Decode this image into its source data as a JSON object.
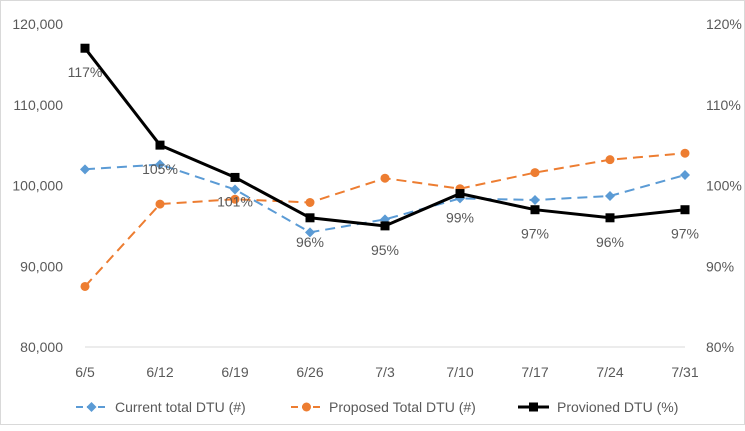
{
  "chart_data": {
    "type": "line",
    "categories": [
      "6/5",
      "6/12",
      "6/19",
      "6/26",
      "7/3",
      "7/10",
      "7/17",
      "7/24",
      "7/31"
    ],
    "y_left": {
      "range": [
        80000,
        120000
      ],
      "ticks": [
        80000,
        90000,
        100000,
        110000,
        120000
      ],
      "tick_labels": [
        "80,000",
        "90,000",
        "100,000",
        "110,000",
        "120,000"
      ]
    },
    "y_right": {
      "range": [
        80,
        120
      ],
      "ticks": [
        80,
        90,
        100,
        110,
        120
      ],
      "tick_labels": [
        "80%",
        "90%",
        "100%",
        "110%",
        "120%"
      ]
    },
    "grid": false,
    "legend_position": "bottom",
    "series": [
      {
        "name": "Current total DTU (#)",
        "axis": "left",
        "color": "#5b9bd5",
        "line_style": "dashed",
        "marker": "diamond",
        "values": [
          102000,
          102600,
          99500,
          94200,
          95800,
          98400,
          98200,
          98700,
          101300
        ]
      },
      {
        "name": "Proposed Total DTU (#)",
        "axis": "left",
        "color": "#ed7d31",
        "line_style": "dashed",
        "marker": "circle",
        "values": [
          87500,
          97700,
          98300,
          97900,
          100900,
          99600,
          101600,
          103200,
          104000
        ]
      },
      {
        "name": "Provioned DTU (%)",
        "axis": "right",
        "color": "#000000",
        "line_style": "solid",
        "marker": "square",
        "values": [
          117,
          105,
          101,
          96,
          95,
          99,
          97,
          96,
          97
        ],
        "data_labels": [
          "117%",
          "105%",
          "101%",
          "96%",
          "95%",
          "99%",
          "97%",
          "96%",
          "97%"
        ]
      }
    ]
  }
}
